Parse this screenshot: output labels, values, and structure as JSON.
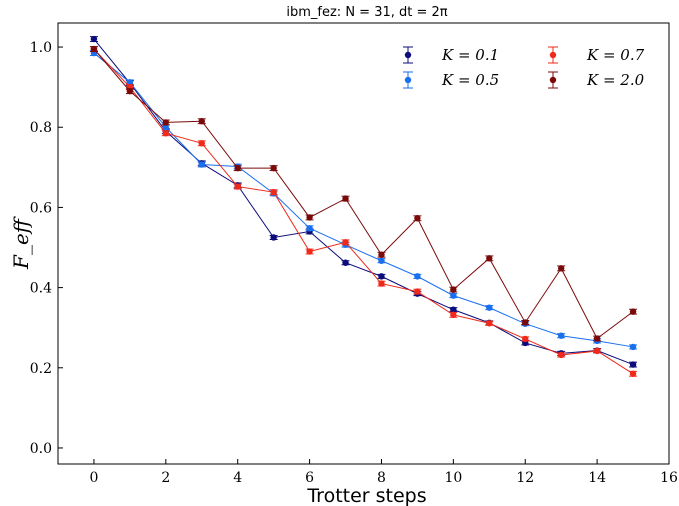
{
  "chart_data": {
    "type": "line",
    "title": "ibm_fez: N = 31, dt = 2π",
    "xlabel": "Trotter steps",
    "ylabel": "F_eff",
    "xlim": [
      -1,
      16
    ],
    "ylim": [
      -0.04,
      1.06
    ],
    "xticks": [
      0,
      2,
      4,
      6,
      8,
      10,
      12,
      14,
      16
    ],
    "yticks": [
      0.0,
      0.2,
      0.4,
      0.6,
      0.8,
      1.0
    ],
    "xtick_labels": [
      "0",
      "2",
      "4",
      "6",
      "8",
      "10",
      "12",
      "14",
      "16"
    ],
    "ytick_labels": [
      "0.0",
      "0.2",
      "0.4",
      "0.6",
      "0.8",
      "1.0"
    ],
    "grid": false,
    "legend_position": "top-right",
    "x": [
      0,
      1,
      2,
      3,
      4,
      5,
      6,
      7,
      8,
      9,
      10,
      11,
      12,
      13,
      14,
      15
    ],
    "series": [
      {
        "name": "K = 0.1",
        "color": "#0c0c7a",
        "values": [
          1.02,
          0.91,
          0.79,
          0.71,
          0.655,
          0.525,
          0.54,
          0.462,
          0.428,
          0.385,
          0.345,
          0.312,
          0.262,
          0.236,
          0.243,
          0.208
        ],
        "errors": [
          0.006,
          0.006,
          0.006,
          0.006,
          0.006,
          0.005,
          0.006,
          0.005,
          0.005,
          0.005,
          0.005,
          0.005,
          0.005,
          0.005,
          0.005,
          0.006
        ]
      },
      {
        "name": "K = 0.5",
        "color": "#1a6fef",
        "values": [
          0.985,
          0.912,
          0.8,
          0.707,
          0.702,
          0.635,
          0.548,
          0.507,
          0.467,
          0.428,
          0.38,
          0.35,
          0.31,
          0.28,
          0.267,
          0.252
        ],
        "errors": [
          0.006,
          0.006,
          0.006,
          0.006,
          0.006,
          0.006,
          0.006,
          0.006,
          0.005,
          0.005,
          0.005,
          0.005,
          0.005,
          0.005,
          0.005,
          0.005
        ]
      },
      {
        "name": "K = 0.7",
        "color": "#f02a1a",
        "values": [
          0.995,
          0.9,
          0.785,
          0.76,
          0.652,
          0.638,
          0.49,
          0.513,
          0.41,
          0.39,
          0.332,
          0.311,
          0.272,
          0.232,
          0.242,
          0.185
        ],
        "errors": [
          0.006,
          0.006,
          0.006,
          0.006,
          0.006,
          0.006,
          0.006,
          0.006,
          0.006,
          0.006,
          0.006,
          0.005,
          0.005,
          0.005,
          0.005,
          0.006
        ]
      },
      {
        "name": "K = 2.0",
        "color": "#7a0a0a",
        "values": [
          0.995,
          0.89,
          0.812,
          0.815,
          0.698,
          0.698,
          0.575,
          0.622,
          0.482,
          0.573,
          0.395,
          0.473,
          0.313,
          0.448,
          0.273,
          0.34
        ],
        "errors": [
          0.006,
          0.006,
          0.006,
          0.006,
          0.006,
          0.006,
          0.006,
          0.006,
          0.006,
          0.006,
          0.006,
          0.006,
          0.005,
          0.006,
          0.006,
          0.006
        ]
      }
    ]
  }
}
